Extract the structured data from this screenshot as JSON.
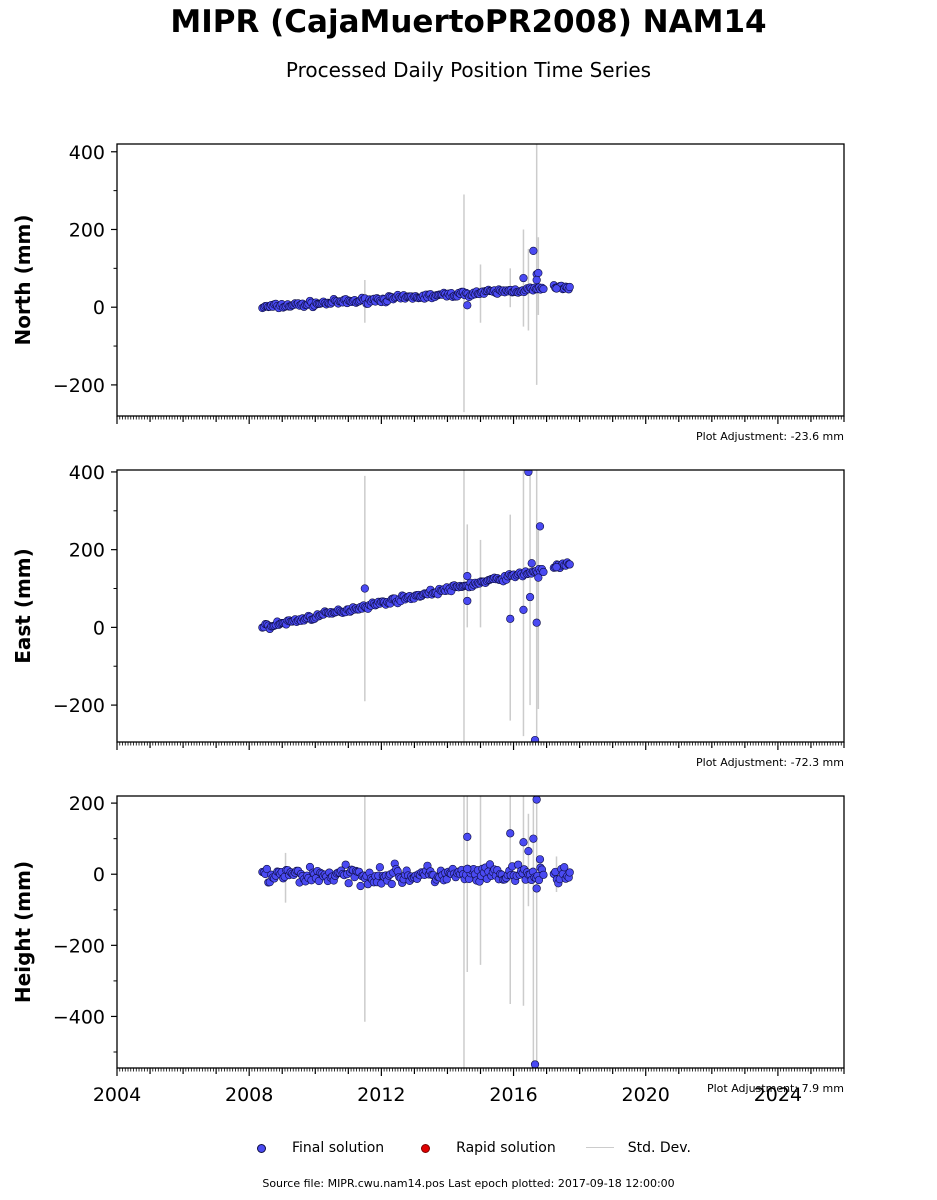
{
  "title": "MIPR (CajaMuertoPR2008) NAM14",
  "subtitle": "Processed Daily Position Time Series",
  "legend": {
    "final": "Final solution",
    "rapid": "Rapid solution",
    "std": "Std. Dev."
  },
  "footer": "Source file: MIPR.cwu.nam14.pos  Last epoch plotted: 2017-09-18 12:00:00",
  "colors": {
    "final_fill": "#4a4af2",
    "final_edge": "#0d0d40",
    "rapid_fill": "#e00000",
    "std_line": "#cccccc"
  },
  "chart_data": {
    "type": "scatter",
    "x_axis": {
      "range": [
        2004,
        2026
      ],
      "ticks": [
        "2004",
        "2008",
        "2012",
        "2016",
        "2020",
        "2024"
      ],
      "tick_values": [
        2004,
        2008,
        2012,
        2016,
        2020,
        2024
      ]
    },
    "panels": [
      {
        "ylabel": "North (mm)",
        "ylim": [
          -280,
          420
        ],
        "yticks": [
          "400",
          "200",
          "0",
          "−200"
        ],
        "ytick_values": [
          400,
          200,
          0,
          -200
        ],
        "adjustment": "Plot Adjustment: -23.6 mm",
        "trend": [
          [
            2008.4,
            0
          ],
          [
            2017.7,
            52
          ]
        ],
        "scatter": 5,
        "outliers": [
          [
            2014.6,
            5
          ],
          [
            2016.3,
            75
          ],
          [
            2016.6,
            145
          ],
          [
            2016.7,
            85
          ],
          [
            2016.75,
            88
          ],
          [
            2016.7,
            70
          ],
          [
            2017.3,
            48
          ],
          [
            2017.7,
            52
          ]
        ],
        "errorbars": [
          [
            2011.5,
            -40,
            70
          ],
          [
            2014.5,
            -270,
            290
          ],
          [
            2015.0,
            -40,
            110
          ],
          [
            2015.9,
            0,
            100
          ],
          [
            2016.3,
            -50,
            200
          ],
          [
            2016.45,
            -60,
            150
          ],
          [
            2016.7,
            -200,
            420
          ],
          [
            2016.75,
            -20,
            180
          ]
        ]
      },
      {
        "ylabel": "East (mm)",
        "ylim": [
          -295,
          405
        ],
        "yticks": [
          "400",
          "200",
          "0",
          "−200"
        ],
        "ytick_values": [
          400,
          200,
          0,
          -200
        ],
        "adjustment": "Plot Adjustment: -72.3 mm",
        "trend": [
          [
            2008.4,
            0
          ],
          [
            2017.7,
            162
          ]
        ],
        "scatter": 5,
        "outliers": [
          [
            2011.5,
            100
          ],
          [
            2014.6,
            132
          ],
          [
            2014.6,
            68
          ],
          [
            2015.9,
            22
          ],
          [
            2016.3,
            45
          ],
          [
            2016.45,
            400
          ],
          [
            2016.5,
            78
          ],
          [
            2016.55,
            165
          ],
          [
            2016.7,
            12
          ],
          [
            2016.75,
            128
          ],
          [
            2016.8,
            260
          ],
          [
            2016.65,
            -290
          ],
          [
            2017.3,
            155
          ],
          [
            2017.7,
            162
          ]
        ],
        "errorbars": [
          [
            2011.5,
            -190,
            390
          ],
          [
            2014.5,
            -295,
            405
          ],
          [
            2014.6,
            0,
            265
          ],
          [
            2015.0,
            0,
            225
          ],
          [
            2015.9,
            -240,
            290
          ],
          [
            2016.3,
            -280,
            405
          ],
          [
            2016.5,
            -200,
            405
          ],
          [
            2016.7,
            -295,
            405
          ],
          [
            2016.75,
            -210,
            250
          ]
        ]
      },
      {
        "ylabel": "Height (mm)",
        "ylim": [
          -545,
          220
        ],
        "yticks": [
          "200",
          "0",
          "−200",
          "−400"
        ],
        "ytick_values": [
          200,
          0,
          -200,
          -400
        ],
        "adjustment": "Plot Adjustment: 7.9 mm",
        "trend": [
          [
            2008.4,
            -3
          ],
          [
            2017.7,
            -3
          ]
        ],
        "scatter": 18,
        "outliers": [
          [
            2014.6,
            105
          ],
          [
            2014.6,
            15
          ],
          [
            2015.9,
            115
          ],
          [
            2016.3,
            90
          ],
          [
            2016.45,
            65
          ],
          [
            2016.6,
            100
          ],
          [
            2016.7,
            210
          ],
          [
            2016.8,
            42
          ],
          [
            2016.65,
            -535
          ],
          [
            2016.7,
            -40
          ],
          [
            2017.7,
            5
          ]
        ],
        "errorbars": [
          [
            2009.1,
            -80,
            60
          ],
          [
            2011.5,
            -415,
            220
          ],
          [
            2014.5,
            -545,
            220
          ],
          [
            2014.6,
            -275,
            220
          ],
          [
            2015.0,
            -255,
            220
          ],
          [
            2015.9,
            -365,
            220
          ],
          [
            2016.3,
            -370,
            220
          ],
          [
            2016.45,
            -90,
            170
          ],
          [
            2016.6,
            -545,
            220
          ],
          [
            2016.7,
            -545,
            220
          ],
          [
            2017.3,
            -50,
            50
          ]
        ]
      }
    ]
  }
}
